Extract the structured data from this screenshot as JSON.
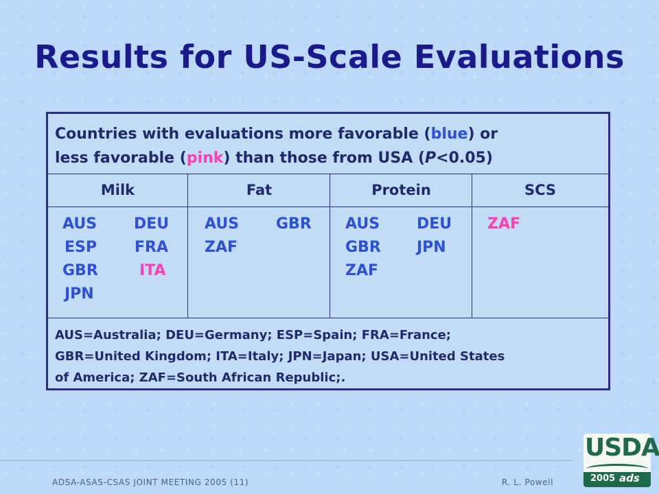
{
  "title": "Results for US-Scale Evaluations",
  "table": {
    "header": {
      "part1": "Countries with evaluations more favorable (",
      "blue_word": "blue",
      "part2": ") or",
      "part3": "less favorable (",
      "pink_word": "pink",
      "part4": ") than those from USA (",
      "p_italic": "P",
      "part5": "<0.05)"
    },
    "columns": [
      "Milk",
      "Fat",
      "Protein",
      "SCS"
    ],
    "milk": [
      "AUS",
      "DEU",
      "ESP",
      "FRA",
      "GBR",
      "ITA",
      "JPN"
    ],
    "fat": [
      "AUS",
      "GBR",
      "ZAF"
    ],
    "protein": [
      "AUS",
      "DEU",
      "GBR",
      "JPN",
      "ZAF"
    ],
    "scs": [
      "ZAF"
    ],
    "legend_lines": [
      "AUS=Australia; DEU=Germany; ESP=Spain; FRA=France;",
      "GBR=United Kingdom; ITA=Italy; JPN=Japan; USA=United States",
      "of America; ZAF=South African Republic;."
    ]
  },
  "colors": {
    "favorable": "#2e4fd8",
    "less_favorable": "#ff3fb3",
    "title": "#1a1a8c"
  },
  "footer": {
    "left": "ADSA-ASAS-CSAS JOINT MEETING 2005 (11)",
    "right": "R. L. Powell"
  },
  "logo": {
    "text": "USDA",
    "year": "2005",
    "mark": "ads"
  }
}
